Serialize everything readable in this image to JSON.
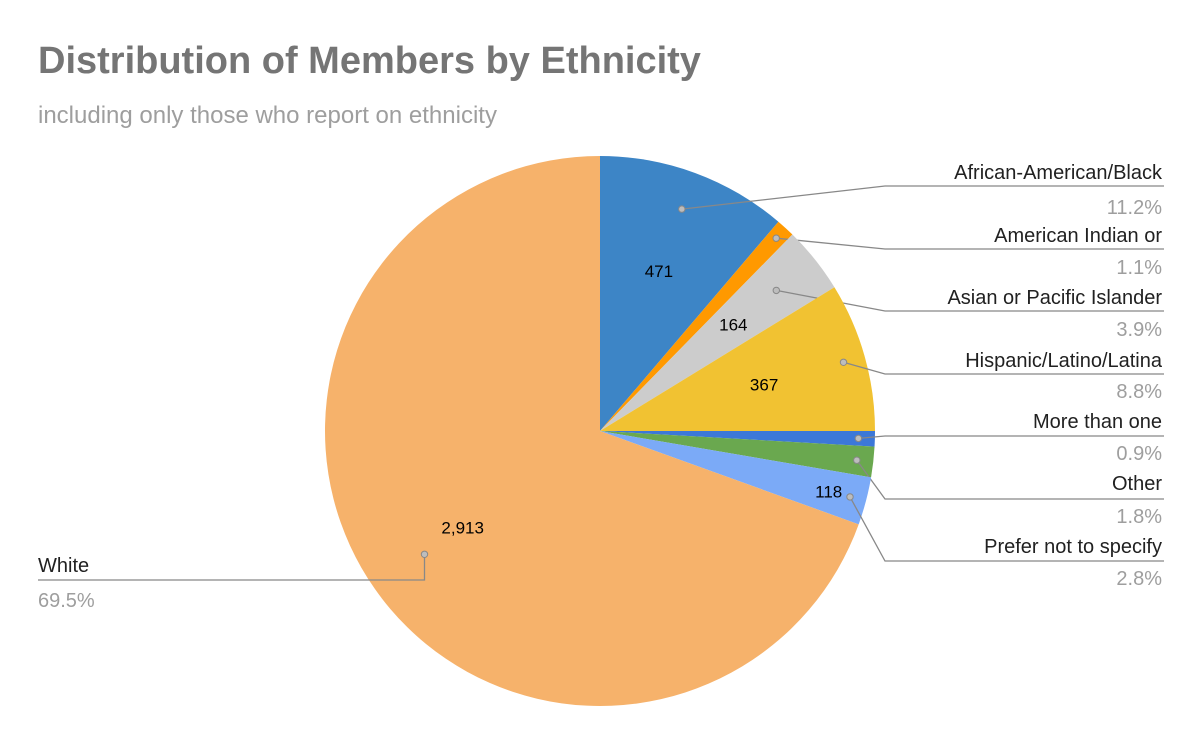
{
  "chart_data": {
    "type": "pie",
    "title": "Distribution of Members by Ethnicity",
    "subtitle": "including only those who report on ethnicity",
    "slices": [
      {
        "label": "African-American/Black",
        "value": 471,
        "data_label": "471",
        "percent": "11.2%",
        "color": "#3d85c6"
      },
      {
        "label": "American Indian or",
        "value": 46,
        "data_label": "",
        "percent": "1.1%",
        "color": "#ff9900"
      },
      {
        "label": "Asian or Pacific Islander",
        "value": 164,
        "data_label": "164",
        "percent": "3.9%",
        "color": "#cccccc"
      },
      {
        "label": "Hispanic/Latino/Latina",
        "value": 367,
        "data_label": "367",
        "percent": "8.8%",
        "color": "#f1c232"
      },
      {
        "label": "More than one",
        "value": 38,
        "data_label": "",
        "percent": "0.9%",
        "color": "#3c78d8"
      },
      {
        "label": "Other",
        "value": 75,
        "data_label": "",
        "percent": "1.8%",
        "color": "#6aa84f"
      },
      {
        "label": "Prefer not to specify",
        "value": 118,
        "data_label": "118",
        "percent": "2.8%",
        "color": "#7baaf7"
      },
      {
        "label": "White",
        "value": 2913,
        "data_label": "2,913",
        "percent": "69.5%",
        "color": "#f6b26b"
      }
    ],
    "legend": "callouts"
  }
}
